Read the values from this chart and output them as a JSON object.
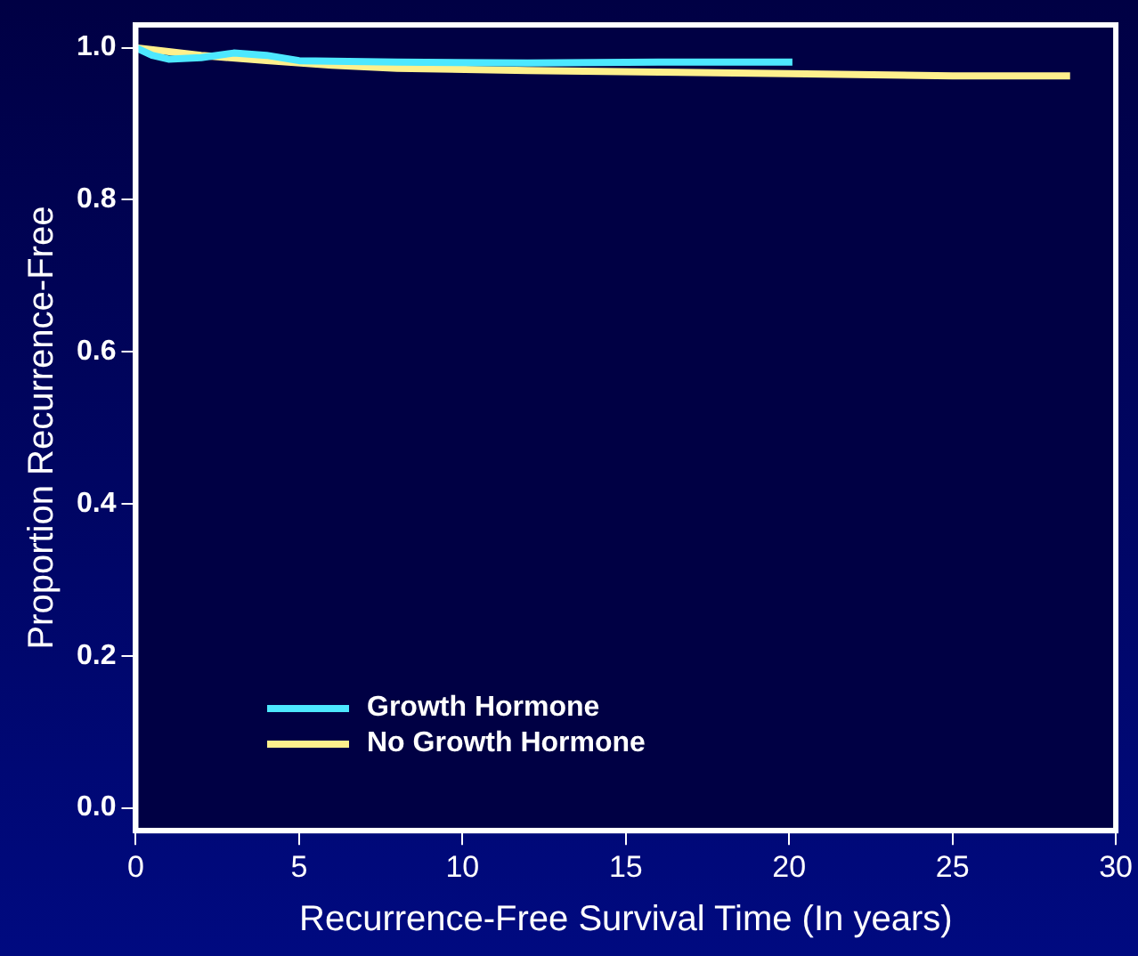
{
  "chart_data": {
    "type": "line",
    "xlabel": "Recurrence-Free Survival Time (In years)",
    "ylabel": "Proportion Recurrence-Free",
    "xlim": [
      0,
      30
    ],
    "xticks": [
      0,
      5,
      10,
      15,
      20,
      25,
      30
    ],
    "ylim": [
      -0.03,
      1.03
    ],
    "yticks": [
      {
        "value": 0,
        "label": "0.0"
      },
      0.2,
      0.4,
      0.6,
      0.8,
      {
        "value": 1,
        "label": "1.0"
      }
    ],
    "grid": false,
    "legend": "bottom left",
    "marker": "none",
    "line_style": "solid",
    "series": [
      {
        "name": "Growth Hormone",
        "color": "#4de8ff",
        "x": [
          0,
          0.5,
          1,
          2,
          3,
          4,
          5,
          8,
          12,
          16,
          20.1
        ],
        "values": [
          1.0,
          0.99,
          0.985,
          0.987,
          0.993,
          0.99,
          0.983,
          0.981,
          0.98,
          0.981,
          0.981
        ]
      },
      {
        "name": "No Growth Hormone",
        "color": "#fff08c",
        "x": [
          0,
          2,
          4,
          6,
          8,
          12,
          16,
          20,
          25,
          28.6
        ],
        "values": [
          1.0,
          0.99,
          0.983,
          0.977,
          0.973,
          0.97,
          0.968,
          0.966,
          0.963,
          0.963
        ]
      }
    ]
  }
}
